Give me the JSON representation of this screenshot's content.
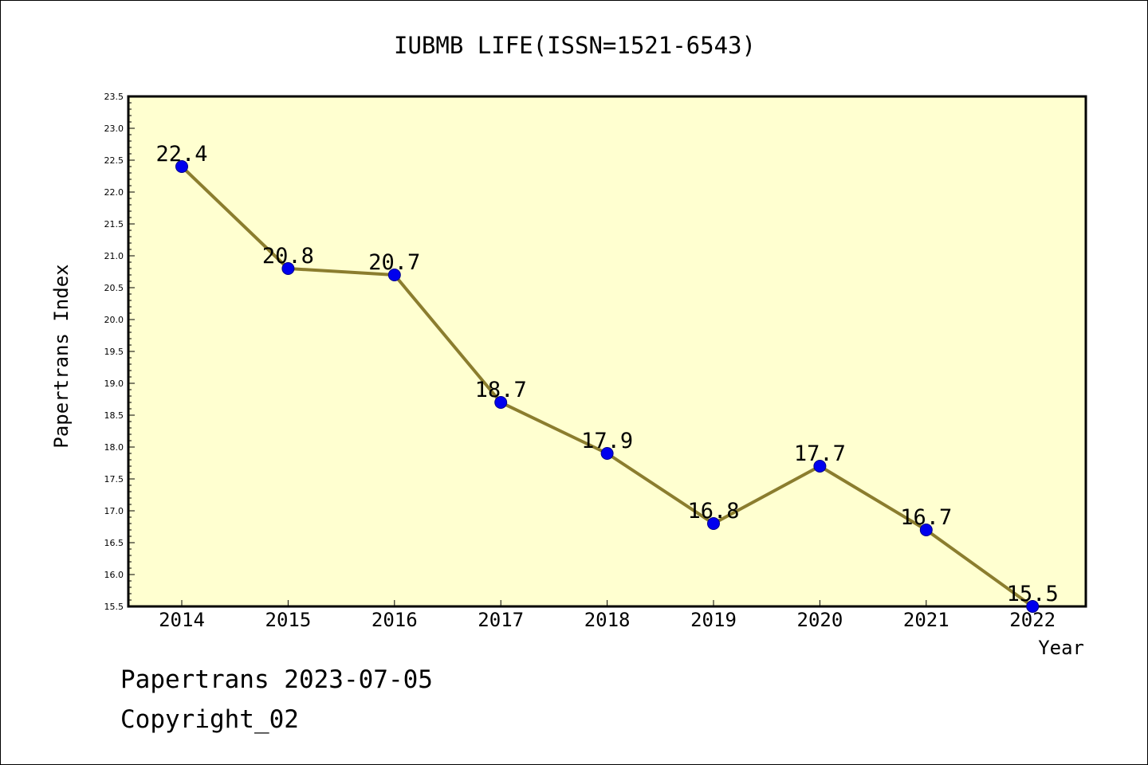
{
  "footer": {
    "line1": "Papertrans 2023-07-05",
    "line2": "Copyright_02"
  },
  "colors": {
    "background": "#ffffff",
    "plot_background": "#ffffd0",
    "line": "#8b7d2e",
    "marker": "#0000ee",
    "axis": "#000000"
  },
  "chart_data": {
    "type": "line",
    "title": "IUBMB LIFE(ISSN=1521-6543)",
    "xlabel": "Year",
    "ylabel": "Papertrans Index",
    "categories": [
      "2014",
      "2015",
      "2016",
      "2017",
      "2018",
      "2019",
      "2020",
      "2021",
      "2022"
    ],
    "series": [
      {
        "values": [
          22.4,
          20.8,
          20.7,
          18.7,
          17.9,
          16.8,
          17.7,
          16.7,
          15.5
        ]
      }
    ],
    "data_labels": [
      "22.4",
      "20.8",
      "20.7",
      "18.7",
      "17.9",
      "16.8",
      "17.7",
      "16.7",
      "15.5"
    ],
    "ylim": [
      15.5,
      23.5
    ],
    "yticks": [
      "15.5",
      "16.0",
      "16.5",
      "17.0",
      "17.5",
      "18.0",
      "18.5",
      "19.0",
      "19.5",
      "20.0",
      "20.5",
      "21.0",
      "21.5",
      "22.0",
      "22.5",
      "23.0",
      "23.5"
    ],
    "grid": false,
    "legend": "none"
  }
}
